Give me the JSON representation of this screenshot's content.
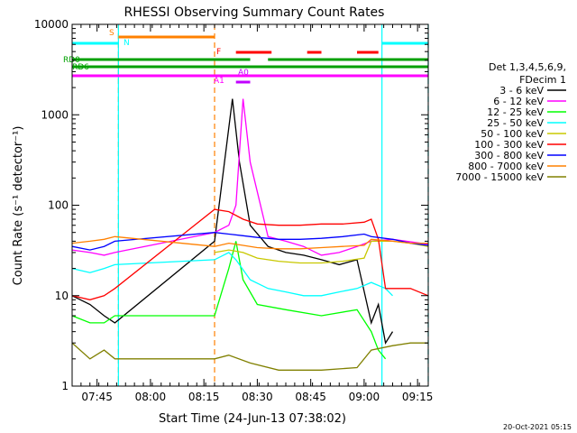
{
  "chart_data": {
    "type": "line",
    "title": "RHESSI Observing Summary Count Rates",
    "ylabel": "Count Rate (s⁻¹ detector⁻¹)",
    "xlabel": "Start Time (24-Jun-13 07:38:02)",
    "y_scale": "log",
    "ylim": [
      1,
      10000
    ],
    "y_ticks": [
      "1",
      "10",
      "100",
      "1000",
      "10000"
    ],
    "xlim_min": [
      0,
      100
    ],
    "x_ticks": [
      {
        "label": "07:45",
        "min": 7
      },
      {
        "label": "08:00",
        "min": 22
      },
      {
        "label": "08:15",
        "min": 37
      },
      {
        "label": "08:30",
        "min": 52
      },
      {
        "label": "08:45",
        "min": 67
      },
      {
        "label": "09:00",
        "min": 82
      },
      {
        "label": "09:15",
        "min": 97
      }
    ],
    "legend": {
      "header": [
        "Det 1,3,4,5,6,9,",
        "FDecim 1"
      ],
      "position": "right"
    },
    "footer_timestamp": "20-Oct-2021 05:15",
    "series": [
      {
        "name": "3 - 6 keV",
        "color": "#000000",
        "points": [
          [
            0,
            10
          ],
          [
            5,
            8
          ],
          [
            9,
            6
          ],
          [
            12,
            5
          ],
          [
            40,
            40
          ],
          [
            45,
            1500
          ],
          [
            47,
            300
          ],
          [
            50,
            60
          ],
          [
            55,
            35
          ],
          [
            60,
            30
          ],
          [
            65,
            28
          ],
          [
            70,
            25
          ],
          [
            75,
            22
          ],
          [
            80,
            25
          ],
          [
            84,
            5
          ],
          [
            86,
            8
          ],
          [
            88,
            3
          ],
          [
            90,
            4
          ]
        ]
      },
      {
        "name": "6 - 12 keV",
        "color": "#ff00ff",
        "points": [
          [
            0,
            32
          ],
          [
            5,
            30
          ],
          [
            9,
            28
          ],
          [
            12,
            30
          ],
          [
            40,
            50
          ],
          [
            44,
            60
          ],
          [
            46,
            100
          ],
          [
            48,
            1500
          ],
          [
            50,
            300
          ],
          [
            55,
            45
          ],
          [
            60,
            40
          ],
          [
            65,
            35
          ],
          [
            70,
            28
          ],
          [
            75,
            30
          ],
          [
            80,
            35
          ],
          [
            84,
            40
          ],
          [
            90,
            42
          ],
          [
            100,
            37
          ]
        ]
      },
      {
        "name": "12 - 25 keV",
        "color": "#00ff00",
        "points": [
          [
            0,
            6
          ],
          [
            5,
            5
          ],
          [
            9,
            5
          ],
          [
            12,
            6
          ],
          [
            40,
            6
          ],
          [
            44,
            20
          ],
          [
            46,
            40
          ],
          [
            48,
            15
          ],
          [
            52,
            8
          ],
          [
            60,
            7
          ],
          [
            70,
            6
          ],
          [
            80,
            7
          ],
          [
            84,
            4
          ],
          [
            86,
            2.5
          ],
          [
            88,
            2
          ]
        ]
      },
      {
        "name": "25 - 50 keV",
        "color": "#00ffff",
        "points": [
          [
            0,
            20
          ],
          [
            5,
            18
          ],
          [
            9,
            20
          ],
          [
            12,
            22
          ],
          [
            40,
            25
          ],
          [
            44,
            30
          ],
          [
            46,
            25
          ],
          [
            50,
            15
          ],
          [
            55,
            12
          ],
          [
            60,
            11
          ],
          [
            65,
            10
          ],
          [
            70,
            10
          ],
          [
            75,
            11
          ],
          [
            80,
            12
          ],
          [
            84,
            14
          ],
          [
            88,
            12
          ],
          [
            90,
            10
          ]
        ]
      },
      {
        "name": "50 - 100 keV",
        "color": "#c8c800",
        "points": [
          [
            40,
            30
          ],
          [
            44,
            32
          ],
          [
            48,
            30
          ],
          [
            52,
            26
          ],
          [
            58,
            24
          ],
          [
            64,
            23
          ],
          [
            70,
            23
          ],
          [
            76,
            24
          ],
          [
            82,
            26
          ],
          [
            84,
            40
          ],
          [
            90,
            40
          ],
          [
            95,
            38
          ],
          [
            100,
            35
          ]
        ]
      },
      {
        "name": "100 - 300 keV",
        "color": "#ff0000",
        "points": [
          [
            0,
            10
          ],
          [
            5,
            9
          ],
          [
            9,
            10
          ],
          [
            12,
            12
          ],
          [
            40,
            90
          ],
          [
            44,
            85
          ],
          [
            48,
            70
          ],
          [
            52,
            62
          ],
          [
            58,
            60
          ],
          [
            64,
            60
          ],
          [
            70,
            62
          ],
          [
            76,
            62
          ],
          [
            82,
            65
          ],
          [
            84,
            70
          ],
          [
            86,
            42
          ],
          [
            88,
            12
          ],
          [
            90,
            12
          ],
          [
            95,
            12
          ],
          [
            100,
            10
          ]
        ]
      },
      {
        "name": "300 - 800 keV",
        "color": "#0000ff",
        "points": [
          [
            0,
            35
          ],
          [
            5,
            32
          ],
          [
            9,
            35
          ],
          [
            12,
            40
          ],
          [
            40,
            50
          ],
          [
            44,
            48
          ],
          [
            48,
            46
          ],
          [
            52,
            44
          ],
          [
            58,
            42
          ],
          [
            64,
            42
          ],
          [
            70,
            43
          ],
          [
            76,
            45
          ],
          [
            82,
            48
          ],
          [
            84,
            45
          ],
          [
            90,
            42
          ],
          [
            95,
            38
          ],
          [
            100,
            36
          ]
        ]
      },
      {
        "name": "800 - 7000 keV",
        "color": "#ff8000",
        "points": [
          [
            0,
            38
          ],
          [
            5,
            40
          ],
          [
            9,
            42
          ],
          [
            12,
            45
          ],
          [
            40,
            35
          ],
          [
            44,
            38
          ],
          [
            48,
            36
          ],
          [
            52,
            34
          ],
          [
            58,
            33
          ],
          [
            64,
            33
          ],
          [
            70,
            34
          ],
          [
            76,
            35
          ],
          [
            82,
            36
          ],
          [
            84,
            42
          ],
          [
            90,
            40
          ],
          [
            95,
            38
          ],
          [
            100,
            38
          ]
        ]
      },
      {
        "name": "7000 - 15000 keV",
        "color": "#808000",
        "points": [
          [
            0,
            3
          ],
          [
            5,
            2
          ],
          [
            9,
            2.5
          ],
          [
            12,
            2
          ],
          [
            40,
            2
          ],
          [
            44,
            2.2
          ],
          [
            50,
            1.8
          ],
          [
            58,
            1.5
          ],
          [
            70,
            1.5
          ],
          [
            80,
            1.6
          ],
          [
            84,
            2.5
          ],
          [
            90,
            2.8
          ],
          [
            95,
            3
          ],
          [
            100,
            3
          ]
        ]
      }
    ],
    "flag_bars": [
      {
        "label": "S",
        "color": "#ff8000",
        "label_color": "#ff8000",
        "segments": [
          [
            13,
            40
          ]
        ]
      },
      {
        "label": "N",
        "color": "#00ffff",
        "label_color": "#00ffff",
        "segments": [
          [
            0,
            13
          ],
          [
            87,
            100
          ]
        ]
      },
      {
        "label": "F",
        "color": "#ff0000",
        "label_color": "#ff0000",
        "segments": [
          [
            46,
            56
          ],
          [
            66,
            70
          ],
          [
            80,
            86
          ]
        ]
      },
      {
        "label": "RD0",
        "color": "#00a000",
        "label_color": "#00a000",
        "segments": [
          [
            0,
            40
          ],
          [
            40,
            50
          ],
          [
            55,
            100
          ]
        ]
      },
      {
        "label": "RD6",
        "color": "#00a000",
        "label_color": "#00a000",
        "segments": [
          [
            0,
            100
          ]
        ]
      },
      {
        "label": "A0",
        "color": "#c000ff",
        "label_color": "#c000ff",
        "segments": [
          [
            46,
            50
          ]
        ]
      },
      {
        "label": "A1",
        "color": "#ff00ff",
        "label_color": "#ff00ff",
        "segments": [
          [
            0,
            100
          ]
        ]
      }
    ],
    "vertical_markers": [
      {
        "min": 13,
        "color": "#ff8000",
        "style": "dashed"
      },
      {
        "min": 40,
        "color": "#ff8000",
        "style": "dashed"
      },
      {
        "min": 13,
        "color": "#00ffff",
        "style": "solid"
      },
      {
        "min": 87,
        "color": "#00ffff",
        "style": "solid"
      },
      {
        "min": 100,
        "color": "#00ffff",
        "style": "dashed"
      }
    ],
    "grid": false
  }
}
